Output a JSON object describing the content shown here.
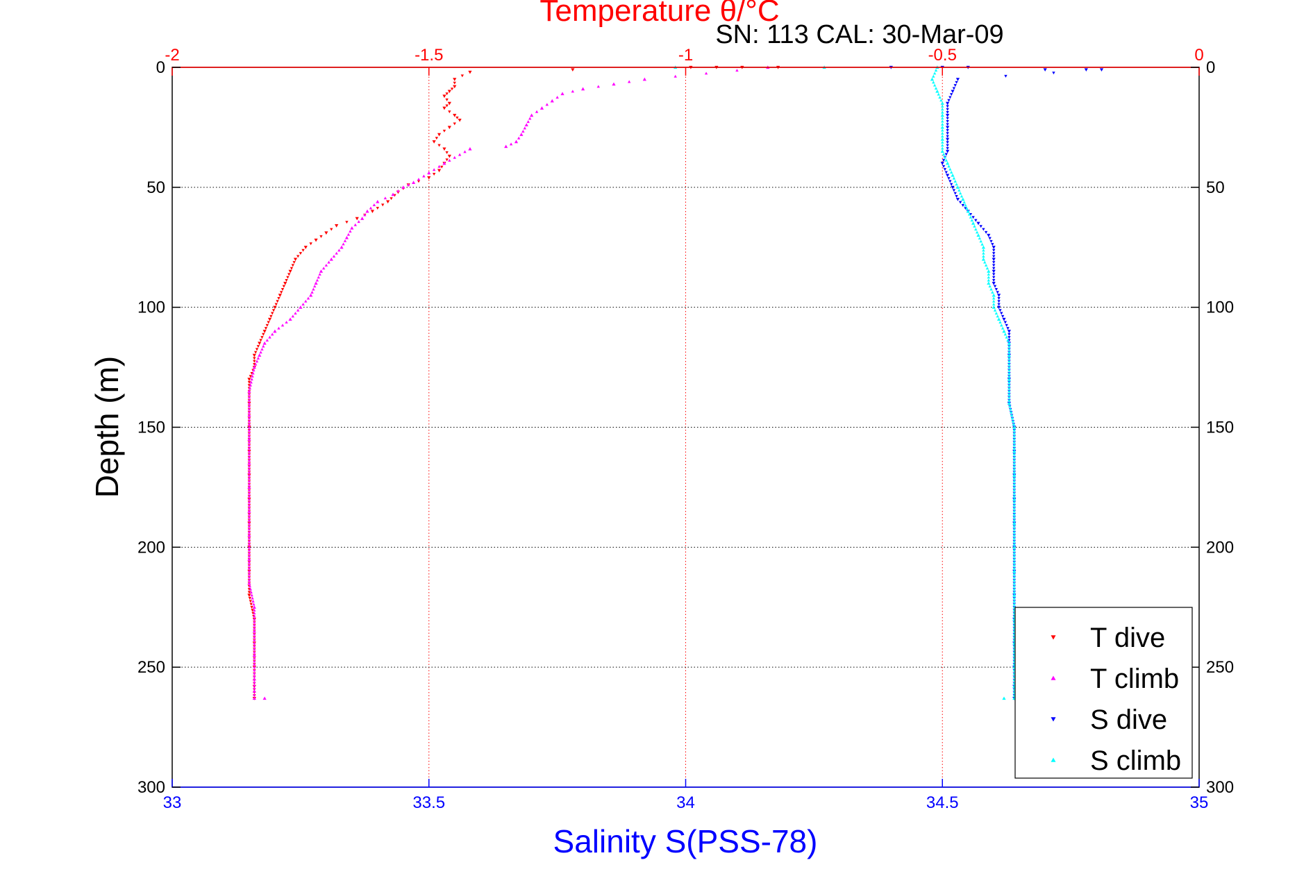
{
  "chart_data": {
    "type": "scatter",
    "title": "Temperature θ/°C",
    "subtitle": "SN: 113  CAL: 30-Mar-09",
    "xlabel": "Salinity S(PSS-78)",
    "ylabel": "Depth (m)",
    "x_top": {
      "label": "Temperature θ/°C",
      "range": [
        -2,
        0
      ],
      "ticks": [
        -2,
        -1.5,
        -1,
        -0.5,
        0
      ],
      "tick_labels": [
        "-2",
        "-1.5",
        "-1",
        "-0.5",
        "0"
      ]
    },
    "x_bottom": {
      "label": "Salinity S(PSS-78)",
      "range": [
        33,
        35
      ],
      "ticks": [
        33,
        33.5,
        34,
        34.5,
        35
      ],
      "tick_labels": [
        "33",
        "33.5",
        "34",
        "34.5",
        "35"
      ]
    },
    "y": {
      "label": "Depth (m)",
      "range": [
        0,
        300
      ],
      "reversed": true,
      "ticks": [
        0,
        50,
        100,
        150,
        200,
        250,
        300
      ],
      "tick_labels": [
        "0",
        "50",
        "100",
        "150",
        "200",
        "250",
        "300"
      ]
    },
    "grid": "vertical and horizontal dotted",
    "legend_position": "bottom-right",
    "series": [
      {
        "name": "T dive",
        "axis": "top",
        "color": "#ff0000",
        "marker": "triangle-down",
        "points": [
          [
            -0.99,
            0
          ],
          [
            -0.94,
            0
          ],
          [
            -0.89,
            0
          ],
          [
            -0.82,
            0
          ],
          [
            -1.22,
            1
          ],
          [
            -1.42,
            2
          ],
          [
            -1.45,
            5
          ],
          [
            -1.45,
            8
          ],
          [
            -1.46,
            10
          ],
          [
            -1.47,
            12
          ],
          [
            -1.46,
            15
          ],
          [
            -1.47,
            17
          ],
          [
            -1.45,
            20
          ],
          [
            -1.44,
            22
          ],
          [
            -1.46,
            25
          ],
          [
            -1.48,
            28
          ],
          [
            -1.49,
            31
          ],
          [
            -1.47,
            34
          ],
          [
            -1.46,
            37
          ],
          [
            -1.47,
            40
          ],
          [
            -1.48,
            43
          ],
          [
            -1.5,
            46
          ],
          [
            -1.54,
            49
          ],
          [
            -1.56,
            52
          ],
          [
            -1.58,
            56
          ],
          [
            -1.61,
            60
          ],
          [
            -1.64,
            63
          ],
          [
            -1.68,
            66
          ],
          [
            -1.7,
            69
          ],
          [
            -1.72,
            72
          ],
          [
            -1.74,
            75
          ],
          [
            -1.76,
            80
          ],
          [
            -1.77,
            85
          ],
          [
            -1.78,
            90
          ],
          [
            -1.79,
            95
          ],
          [
            -1.8,
            100
          ],
          [
            -1.81,
            105
          ],
          [
            -1.82,
            110
          ],
          [
            -1.83,
            115
          ],
          [
            -1.84,
            120
          ],
          [
            -1.84,
            125
          ],
          [
            -1.85,
            130
          ],
          [
            -1.85,
            140
          ],
          [
            -1.85,
            150
          ],
          [
            -1.85,
            160
          ],
          [
            -1.85,
            170
          ],
          [
            -1.85,
            180
          ],
          [
            -1.85,
            190
          ],
          [
            -1.85,
            200
          ],
          [
            -1.85,
            210
          ],
          [
            -1.85,
            220
          ],
          [
            -1.84,
            230
          ],
          [
            -1.84,
            240
          ],
          [
            -1.84,
            250
          ],
          [
            -1.84,
            258
          ],
          [
            -1.84,
            263
          ]
        ]
      },
      {
        "name": "T climb",
        "axis": "top",
        "color": "#ff00ff",
        "marker": "triangle-up",
        "points": [
          [
            -0.84,
            0
          ],
          [
            -1.08,
            5
          ],
          [
            -1.14,
            7
          ],
          [
            -1.2,
            9
          ],
          [
            -1.24,
            11
          ],
          [
            -1.26,
            14
          ],
          [
            -1.28,
            17
          ],
          [
            -1.3,
            20
          ],
          [
            -1.31,
            24
          ],
          [
            -1.32,
            28
          ],
          [
            -1.33,
            31
          ],
          [
            -1.35,
            33
          ],
          [
            -1.42,
            34
          ],
          [
            -1.47,
            40
          ],
          [
            -1.5,
            44
          ],
          [
            -1.53,
            48
          ],
          [
            -1.55,
            50
          ],
          [
            -1.57,
            53
          ],
          [
            -1.6,
            56
          ],
          [
            -1.62,
            60
          ],
          [
            -1.63,
            63
          ],
          [
            -1.65,
            67
          ],
          [
            -1.66,
            71
          ],
          [
            -1.67,
            75
          ],
          [
            -1.69,
            80
          ],
          [
            -1.71,
            85
          ],
          [
            -1.72,
            90
          ],
          [
            -1.73,
            95
          ],
          [
            -1.75,
            100
          ],
          [
            -1.77,
            105
          ],
          [
            -1.8,
            110
          ],
          [
            -1.82,
            115
          ],
          [
            -1.83,
            120
          ],
          [
            -1.84,
            125
          ],
          [
            -1.85,
            135
          ],
          [
            -1.85,
            145
          ],
          [
            -1.85,
            155
          ],
          [
            -1.85,
            165
          ],
          [
            -1.85,
            175
          ],
          [
            -1.85,
            185
          ],
          [
            -1.85,
            195
          ],
          [
            -1.85,
            205
          ],
          [
            -1.85,
            215
          ],
          [
            -1.84,
            225
          ],
          [
            -1.84,
            235
          ],
          [
            -1.84,
            245
          ],
          [
            -1.84,
            255
          ],
          [
            -1.84,
            260
          ],
          [
            -1.84,
            263
          ],
          [
            -1.82,
            263
          ]
        ]
      },
      {
        "name": "S dive",
        "axis": "bottom",
        "color": "#0000ff",
        "marker": "triangle-down",
        "points": [
          [
            34.4,
            0
          ],
          [
            34.5,
            0
          ],
          [
            34.55,
            0
          ],
          [
            34.7,
            1
          ],
          [
            34.78,
            1
          ],
          [
            34.81,
            1
          ],
          [
            34.53,
            5
          ],
          [
            34.52,
            10
          ],
          [
            34.51,
            15
          ],
          [
            34.51,
            20
          ],
          [
            34.51,
            25
          ],
          [
            34.51,
            30
          ],
          [
            34.51,
            35
          ],
          [
            34.5,
            40
          ],
          [
            34.51,
            45
          ],
          [
            34.52,
            50
          ],
          [
            34.53,
            55
          ],
          [
            34.55,
            60
          ],
          [
            34.57,
            65
          ],
          [
            34.59,
            70
          ],
          [
            34.6,
            75
          ],
          [
            34.6,
            80
          ],
          [
            34.6,
            85
          ],
          [
            34.6,
            90
          ],
          [
            34.61,
            95
          ],
          [
            34.61,
            100
          ],
          [
            34.62,
            105
          ],
          [
            34.63,
            110
          ],
          [
            34.63,
            115
          ],
          [
            34.63,
            120
          ],
          [
            34.63,
            130
          ],
          [
            34.63,
            140
          ],
          [
            34.64,
            150
          ],
          [
            34.64,
            160
          ],
          [
            34.64,
            170
          ],
          [
            34.64,
            180
          ],
          [
            34.64,
            190
          ],
          [
            34.64,
            200
          ],
          [
            34.64,
            210
          ],
          [
            34.64,
            220
          ],
          [
            34.64,
            230
          ],
          [
            34.64,
            240
          ],
          [
            34.64,
            250
          ],
          [
            34.64,
            258
          ],
          [
            34.64,
            263
          ]
        ]
      },
      {
        "name": "S climb",
        "axis": "bottom",
        "color": "#00ffff",
        "marker": "triangle-up",
        "points": [
          [
            33.98,
            0
          ],
          [
            34.27,
            0
          ],
          [
            34.49,
            0
          ],
          [
            34.48,
            5
          ],
          [
            34.49,
            10
          ],
          [
            34.5,
            15
          ],
          [
            34.5,
            20
          ],
          [
            34.5,
            25
          ],
          [
            34.5,
            30
          ],
          [
            34.5,
            35
          ],
          [
            34.51,
            40
          ],
          [
            34.52,
            45
          ],
          [
            34.53,
            50
          ],
          [
            34.54,
            55
          ],
          [
            34.55,
            60
          ],
          [
            34.56,
            65
          ],
          [
            34.57,
            70
          ],
          [
            34.58,
            75
          ],
          [
            34.58,
            80
          ],
          [
            34.59,
            85
          ],
          [
            34.59,
            90
          ],
          [
            34.6,
            95
          ],
          [
            34.6,
            100
          ],
          [
            34.61,
            105
          ],
          [
            34.62,
            110
          ],
          [
            34.63,
            115
          ],
          [
            34.63,
            120
          ],
          [
            34.63,
            130
          ],
          [
            34.63,
            140
          ],
          [
            34.64,
            150
          ],
          [
            34.64,
            160
          ],
          [
            34.64,
            170
          ],
          [
            34.64,
            180
          ],
          [
            34.64,
            190
          ],
          [
            34.64,
            200
          ],
          [
            34.64,
            210
          ],
          [
            34.64,
            220
          ],
          [
            34.64,
            230
          ],
          [
            34.64,
            240
          ],
          [
            34.64,
            250
          ],
          [
            34.64,
            258
          ],
          [
            34.64,
            263
          ],
          [
            34.62,
            263
          ]
        ]
      }
    ]
  }
}
